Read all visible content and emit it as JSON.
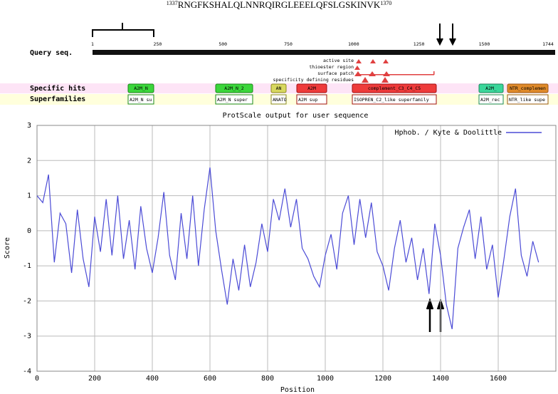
{
  "sequence_header": {
    "start": "1337",
    "sequence": "RNGFKSHALQLNNRQIRGLEEELQFSLGSKINVK",
    "end": "1370"
  },
  "domain_diagram": {
    "query_label": "Query seq.",
    "ticks": [
      1,
      250,
      500,
      750,
      1000,
      1250,
      1500,
      1744
    ],
    "features": [
      "active site",
      "thioester region",
      "surface patch",
      "specificity defining residues"
    ],
    "specific_hits": {
      "label": "Specific hits",
      "domains": [
        "A2M_N",
        "A2M_N_2",
        "AN",
        "A2M",
        "complement_C3_C4_C5",
        "A2M_",
        "NTR_complemen"
      ]
    },
    "superfamilies": {
      "label": "Superfamilies",
      "domains": [
        "A2M_N su",
        "A2M_N super",
        "ANATO",
        "A2M sup",
        "ISOPREN_C2_like superfamily",
        "A2M_rec",
        "NTR_like supe"
      ]
    }
  },
  "chart_data": {
    "type": "line",
    "title": "ProtScale output for user sequence",
    "xlabel": "Position",
    "ylabel": "Score",
    "x": [
      0,
      20,
      40,
      60,
      80,
      100,
      120,
      140,
      160,
      180,
      200,
      220,
      240,
      260,
      280,
      300,
      320,
      340,
      360,
      380,
      400,
      420,
      440,
      460,
      480,
      500,
      520,
      540,
      560,
      580,
      600,
      620,
      640,
      660,
      680,
      700,
      720,
      740,
      760,
      780,
      800,
      820,
      840,
      860,
      880,
      900,
      920,
      940,
      960,
      980,
      1000,
      1020,
      1040,
      1060,
      1080,
      1100,
      1120,
      1140,
      1160,
      1180,
      1200,
      1220,
      1240,
      1260,
      1280,
      1300,
      1320,
      1340,
      1360,
      1380,
      1400,
      1420,
      1440,
      1460,
      1480,
      1500,
      1520,
      1540,
      1560,
      1580,
      1600,
      1620,
      1640,
      1660,
      1680,
      1700,
      1720,
      1740
    ],
    "series": [
      {
        "name": "Hphob. / Kyte & Doolittle",
        "color": "#4b4bd6",
        "values": [
          1.0,
          0.8,
          1.6,
          -0.9,
          0.5,
          0.2,
          -1.2,
          0.6,
          -0.8,
          -1.6,
          0.4,
          -0.6,
          0.9,
          -0.7,
          1.0,
          -0.8,
          0.3,
          -1.1,
          0.7,
          -0.5,
          -1.2,
          -0.2,
          1.1,
          -0.7,
          -1.4,
          0.5,
          -0.8,
          1.0,
          -1.0,
          0.6,
          1.8,
          0.0,
          -1.1,
          -2.1,
          -0.8,
          -1.7,
          -0.4,
          -1.6,
          -0.9,
          0.2,
          -0.6,
          0.9,
          0.3,
          1.2,
          0.1,
          0.9,
          -0.5,
          -0.8,
          -1.3,
          -1.6,
          -0.7,
          -0.1,
          -1.1,
          0.5,
          1.0,
          -0.4,
          0.9,
          -0.2,
          0.8,
          -0.6,
          -1.0,
          -1.7,
          -0.5,
          0.3,
          -0.9,
          -0.2,
          -1.4,
          -0.5,
          -1.8,
          0.2,
          -0.7,
          -2.1,
          -2.8,
          -0.5,
          0.1,
          0.6,
          -0.8,
          0.4,
          -1.1,
          -0.4,
          -1.9,
          -0.8,
          0.4,
          1.2,
          -0.7,
          -1.3,
          -0.3,
          -0.9
        ]
      }
    ],
    "xlim": [
      0,
      1800
    ],
    "xticks": [
      0,
      200,
      400,
      600,
      800,
      1000,
      1200,
      1400,
      1600
    ],
    "ylim": [
      -4,
      3
    ],
    "yticks": [
      -4,
      -3,
      -2,
      -1,
      0,
      1,
      2,
      3
    ],
    "grid": true,
    "legend": "upper right"
  }
}
